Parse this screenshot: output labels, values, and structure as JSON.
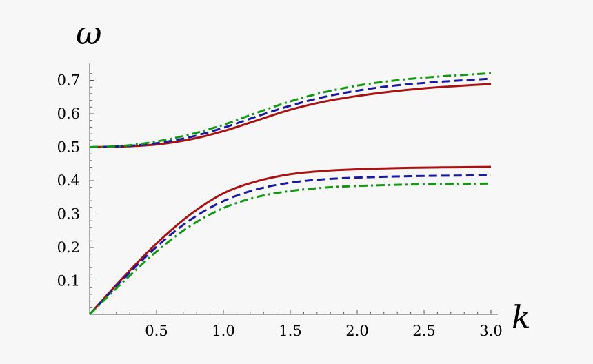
{
  "chart_data": {
    "type": "line",
    "title": "",
    "xlabel": "k",
    "ylabel": "ω",
    "xlim": [
      0,
      3.0
    ],
    "ylim": [
      0,
      0.75
    ],
    "grid": false,
    "legend": "none",
    "x_ticks": [
      "0.5",
      "1.0",
      "1.5",
      "2.0",
      "2.5",
      "3.0"
    ],
    "y_ticks": [
      "0.1",
      "0.2",
      "0.3",
      "0.4",
      "0.5",
      "0.6",
      "0.7"
    ],
    "x": [
      0,
      0.25,
      0.5,
      0.75,
      1.0,
      1.25,
      1.5,
      1.75,
      2.0,
      2.25,
      2.5,
      2.75,
      3.0
    ],
    "series": [
      {
        "color": "#aa1111",
        "dash": "solid",
        "values": [
          0.5,
          0.502,
          0.508,
          0.523,
          0.548,
          0.58,
          0.612,
          0.636,
          0.653,
          0.666,
          0.676,
          0.683,
          0.689
        ]
      },
      {
        "color": "#1a1aa0",
        "dash": "dashed",
        "values": [
          0.5,
          0.503,
          0.512,
          0.53,
          0.558,
          0.592,
          0.624,
          0.65,
          0.669,
          0.683,
          0.692,
          0.699,
          0.705
        ]
      },
      {
        "color": "#119911",
        "dash": "dash-dot",
        "values": [
          0.5,
          0.504,
          0.517,
          0.538,
          0.567,
          0.603,
          0.637,
          0.664,
          0.684,
          0.698,
          0.708,
          0.715,
          0.721
        ]
      },
      {
        "color": "#aa1111",
        "dash": "solid",
        "values": [
          0.0,
          0.11,
          0.212,
          0.298,
          0.362,
          0.398,
          0.419,
          0.429,
          0.434,
          0.437,
          0.439,
          0.44,
          0.441
        ]
      },
      {
        "color": "#1a1aa0",
        "dash": "dashed",
        "values": [
          0.0,
          0.105,
          0.202,
          0.282,
          0.339,
          0.374,
          0.394,
          0.404,
          0.409,
          0.412,
          0.414,
          0.415,
          0.416
        ]
      },
      {
        "color": "#119911",
        "dash": "dash-dot",
        "values": [
          0.0,
          0.097,
          0.188,
          0.264,
          0.318,
          0.351,
          0.369,
          0.379,
          0.384,
          0.387,
          0.389,
          0.39,
          0.391
        ]
      }
    ]
  }
}
